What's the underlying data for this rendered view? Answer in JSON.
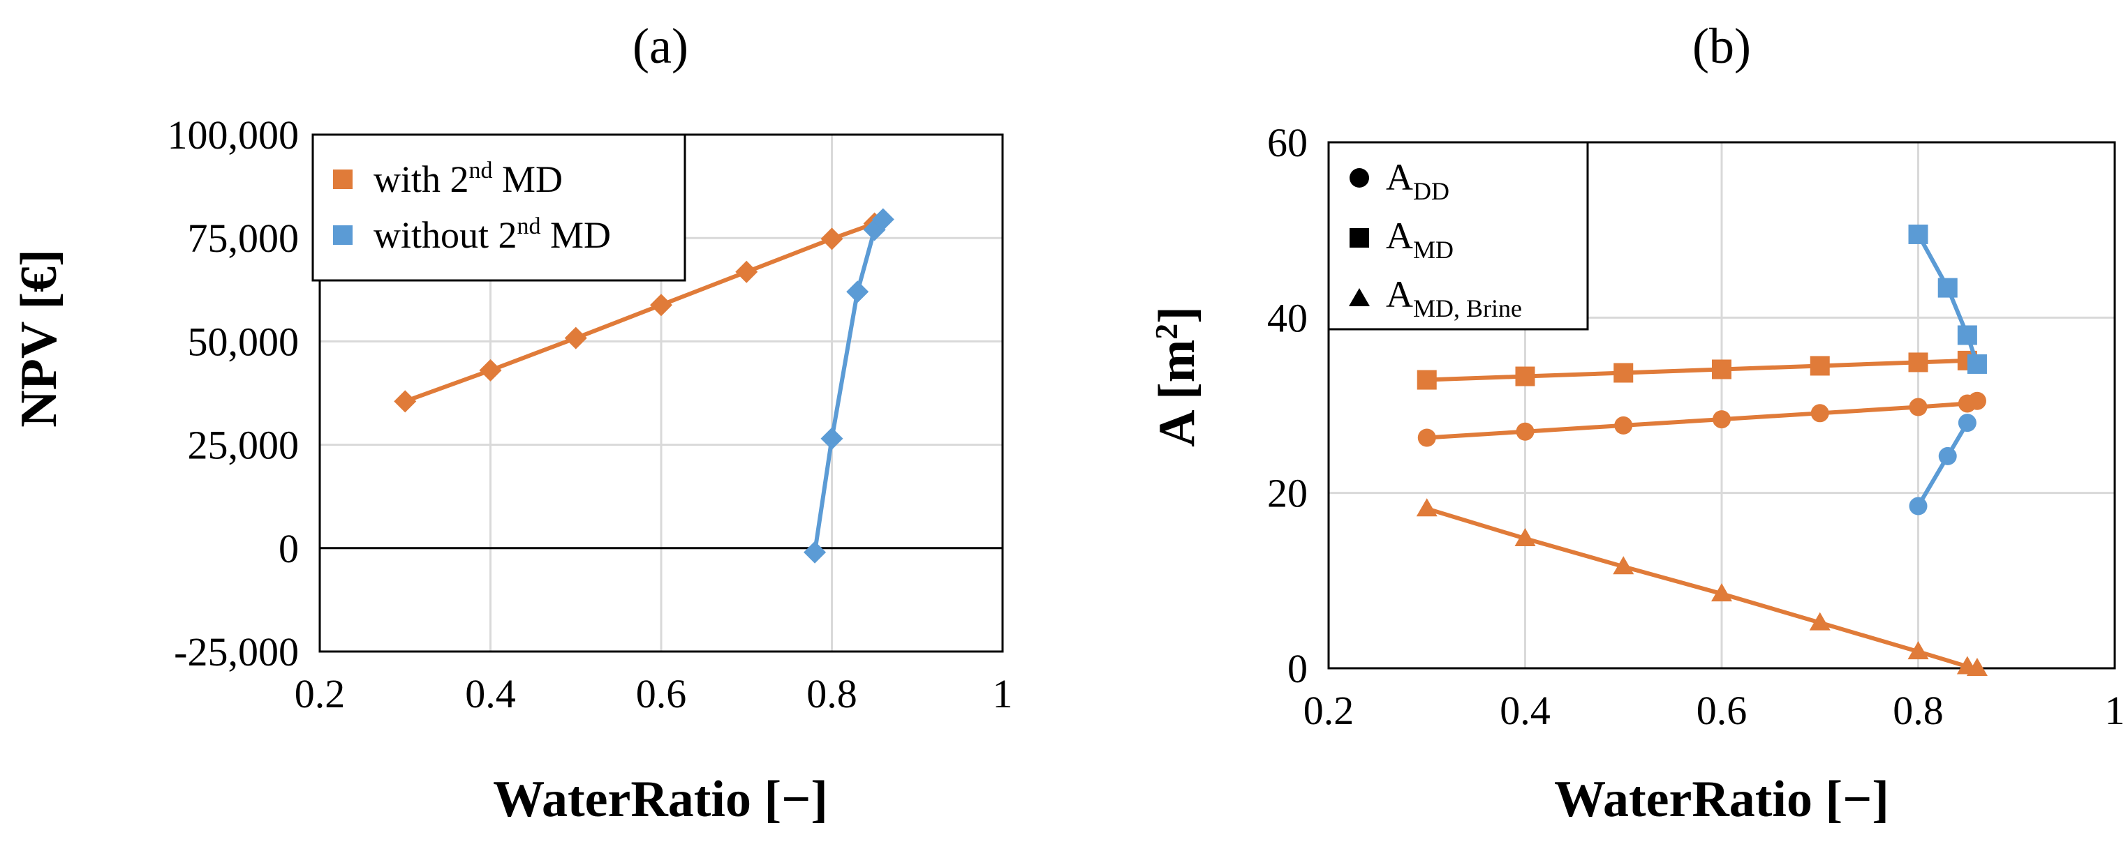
{
  "colors": {
    "orange": "#E07B39",
    "blue": "#5B9BD5",
    "black": "#000000",
    "grid": "#d9d9d9"
  },
  "chart_data": [
    {
      "id": "a",
      "type": "line",
      "title": "(a)",
      "xlabel": "WaterRatio [−]",
      "ylabel": "NPV [€]",
      "xlim": [
        0.2,
        1.0
      ],
      "ylim": [
        -25000,
        100000
      ],
      "xticks": [
        0.2,
        0.4,
        0.6,
        0.8,
        1.0
      ],
      "xtick_labels": [
        "0.2",
        "0.4",
        "0.6",
        "0.8",
        "1"
      ],
      "yticks": [
        -25000,
        0,
        25000,
        50000,
        75000,
        100000
      ],
      "ytick_labels": [
        "-25,000",
        "0",
        "25,000",
        "50,000",
        "75,000",
        "100,000"
      ],
      "legend_position": "top-left",
      "series": [
        {
          "name": "with 2nd MD",
          "legend_base": "with 2",
          "legend_sup": "nd",
          "legend_tail": " MD",
          "color": "#E07B39",
          "marker": "diamond",
          "x": [
            0.3,
            0.4,
            0.5,
            0.6,
            0.7,
            0.8,
            0.85
          ],
          "y": [
            35500,
            43000,
            50800,
            58800,
            66800,
            74800,
            78500
          ]
        },
        {
          "name": "without 2nd MD",
          "legend_base": "without 2",
          "legend_sup": "nd",
          "legend_tail": " MD",
          "color": "#5B9BD5",
          "marker": "diamond",
          "x": [
            0.78,
            0.8,
            0.83,
            0.85,
            0.86
          ],
          "y": [
            -1000,
            26500,
            62000,
            77000,
            79500
          ]
        }
      ]
    },
    {
      "id": "b",
      "type": "line",
      "title": "(b)",
      "xlabel": "WaterRatio [−]",
      "ylabel_base": "A [m",
      "ylabel_sup": "2",
      "ylabel_tail": "]",
      "xlim": [
        0.2,
        1.0
      ],
      "ylim": [
        0,
        60
      ],
      "xticks": [
        0.2,
        0.4,
        0.6,
        0.8,
        1.0
      ],
      "xtick_labels": [
        "0.2",
        "0.4",
        "0.6",
        "0.8",
        "1"
      ],
      "yticks": [
        0,
        20,
        40,
        60
      ],
      "ytick_labels": [
        "0",
        "20",
        "40",
        "60"
      ],
      "legend_position": "top-left",
      "legend": [
        {
          "marker": "circle",
          "label_base": "A",
          "label_sub": "DD"
        },
        {
          "marker": "square",
          "label_base": "A",
          "label_sub": "MD"
        },
        {
          "marker": "triangle",
          "label_base": "A",
          "label_sub": "MD, Brine"
        }
      ],
      "series": [
        {
          "name": "A_DD with 2nd MD",
          "color": "#E07B39",
          "marker": "circle",
          "x": [
            0.3,
            0.4,
            0.5,
            0.6,
            0.7,
            0.8,
            0.85,
            0.86
          ],
          "y": [
            26.3,
            27,
            27.7,
            28.4,
            29.1,
            29.8,
            30.2,
            30.5
          ]
        },
        {
          "name": "A_MD with 2nd MD",
          "color": "#E07B39",
          "marker": "square",
          "x": [
            0.3,
            0.4,
            0.5,
            0.6,
            0.7,
            0.8,
            0.85
          ],
          "y": [
            32.9,
            33.3,
            33.7,
            34.1,
            34.5,
            34.9,
            35.1
          ]
        },
        {
          "name": "A_MD,Brine with 2nd MD",
          "color": "#E07B39",
          "marker": "triangle",
          "x": [
            0.3,
            0.4,
            0.5,
            0.6,
            0.7,
            0.8,
            0.85,
            0.86
          ],
          "y": [
            18.2,
            14.8,
            11.6,
            8.5,
            5.2,
            1.9,
            0.2,
            0.0
          ]
        },
        {
          "name": "A_DD without 2nd MD",
          "color": "#5B9BD5",
          "marker": "circle",
          "x": [
            0.8,
            0.83,
            0.85
          ],
          "y": [
            18.5,
            24.2,
            28.0
          ]
        },
        {
          "name": "A_MD without 2nd MD",
          "color": "#5B9BD5",
          "marker": "square",
          "x": [
            0.8,
            0.83,
            0.85,
            0.86
          ],
          "y": [
            49.5,
            43.4,
            38.0,
            34.7
          ]
        }
      ]
    }
  ]
}
